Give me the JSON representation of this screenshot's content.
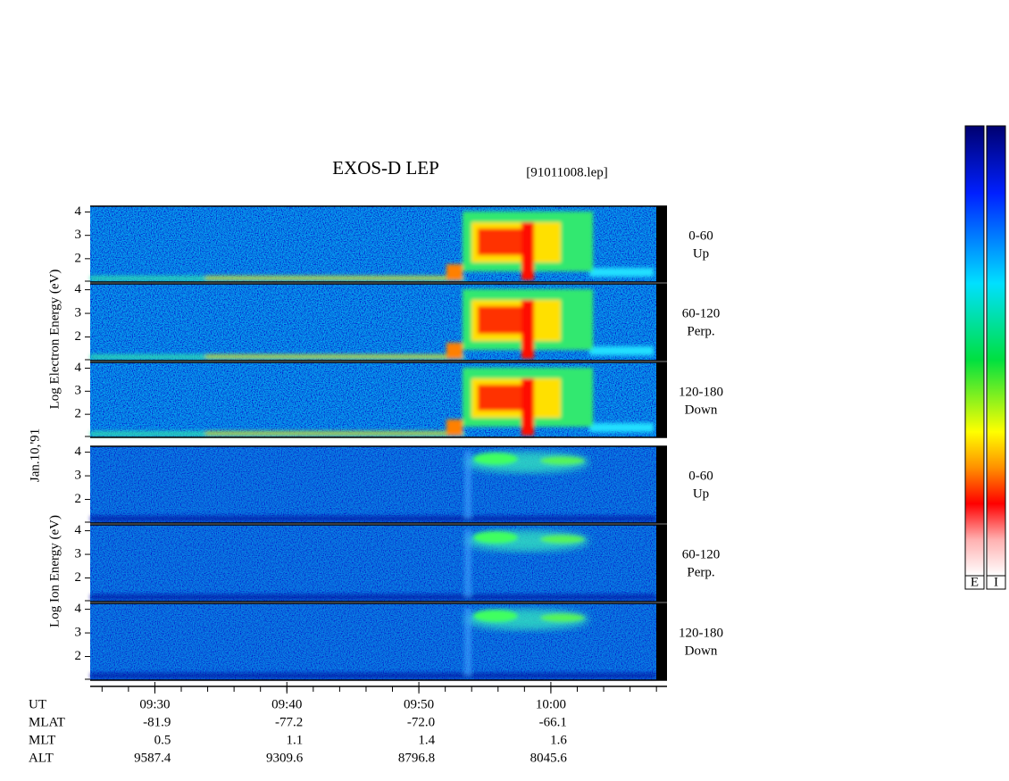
{
  "title": "EXOS-D LEP",
  "file": "[91011008.lep]",
  "date": "Jan.10,'91",
  "groups": [
    {
      "ylabel": "Log Electron Energy (eV)",
      "panels": [
        {
          "range": "0-60",
          "direction": "Up"
        },
        {
          "range": "60-120",
          "direction": "Perp."
        },
        {
          "range": "120-180",
          "direction": "Down"
        }
      ]
    },
    {
      "ylabel": "Log Ion Energy (eV)",
      "panels": [
        {
          "range": "0-60",
          "direction": "Up"
        },
        {
          "range": "60-120",
          "direction": "Perp."
        },
        {
          "range": "120-180",
          "direction": "Down"
        }
      ]
    }
  ],
  "ylim": [
    1,
    4.25
  ],
  "yticks": [
    2,
    3,
    4
  ],
  "xlim": [
    565.1,
    608.8
  ],
  "xticks": [
    {
      "value": 570,
      "label": "09:30"
    },
    {
      "value": 580,
      "label": "09:40"
    },
    {
      "value": 590,
      "label": "09:50"
    },
    {
      "value": 600,
      "label": "10:00"
    }
  ],
  "xminor_step": 2,
  "ut_label": "UT",
  "rows": [
    {
      "name": "MLAT",
      "values": [
        "-81.9",
        "-77.2",
        "-72.0",
        "-66.1"
      ]
    },
    {
      "name": "MLT",
      "values": [
        "0.5",
        "1.1",
        "1.4",
        "1.6"
      ]
    },
    {
      "name": "ALT",
      "values": [
        "9587.4",
        "9309.6",
        "8796.8",
        "8045.6"
      ]
    }
  ],
  "colorbars": [
    "E",
    "I"
  ]
}
